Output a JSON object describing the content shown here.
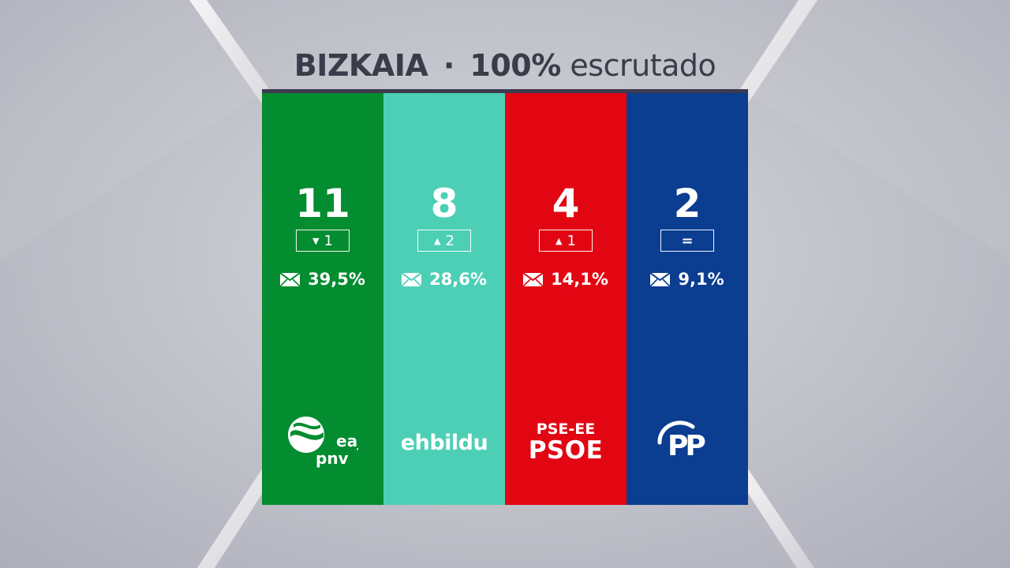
{
  "header": {
    "region": "BIZKAIA",
    "separator": "·",
    "percent": "100%",
    "status": "escrutado"
  },
  "parties": [
    {
      "id": "eaj-pnv",
      "color": "#048c30",
      "seats": "11",
      "change_direction": "down",
      "change_arrow": "▼",
      "change_value": "1",
      "vote_share": "39,5%",
      "logo_line1": "eaj",
      "logo_line2": "pnv",
      "icon": "eaj-pnv-logo"
    },
    {
      "id": "ehbildu",
      "color": "#4dcfb6",
      "seats": "8",
      "change_direction": "up",
      "change_arrow": "▲",
      "change_value": "2",
      "vote_share": "28,6%",
      "logo_text": "ehbildu",
      "icon": "ehbildu-logo"
    },
    {
      "id": "pse-ee",
      "color": "#e20613",
      "seats": "4",
      "change_direction": "up",
      "change_arrow": "▲",
      "change_value": "1",
      "vote_share": "14,1%",
      "logo_line1": "PSE-EE",
      "logo_line2": "PSOE",
      "icon": "psoe-logo"
    },
    {
      "id": "pp",
      "color": "#0b3d91",
      "seats": "2",
      "change_direction": "same",
      "change_arrow": "",
      "change_value": "=",
      "vote_share": "9,1%",
      "logo_text": "PP",
      "icon": "pp-logo"
    }
  ],
  "colors": {
    "title": "#3b3b4a",
    "rule": "#3c3b4f"
  }
}
